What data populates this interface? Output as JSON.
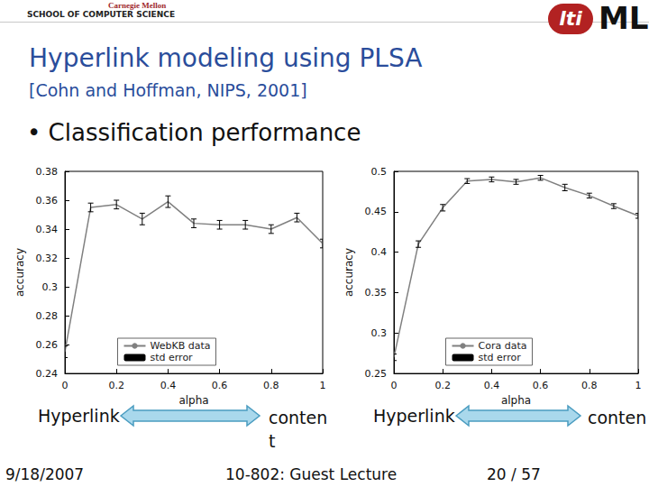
{
  "slide": {
    "header": {
      "university": "Carnegie Mellon",
      "school": "SCHOOL OF COMPUTER SCIENCE",
      "logo1": "lti",
      "logo2": "ML"
    },
    "title": "Hyperlink modeling using PLSA",
    "subtitle": "[Cohn and Hoffman, NIPS, 2001]",
    "bullet": "• Classification performance",
    "arrows": [
      {
        "left": "Hyperlink",
        "right": "conten\nt"
      },
      {
        "left": "Hyperlink",
        "right": "conten"
      }
    ],
    "footer": {
      "date": "9/18/2007",
      "course": "10-802: Guest Lecture",
      "page": "20 / 57"
    }
  },
  "chart_data": [
    {
      "type": "line",
      "x_label": "alpha",
      "y_label": "accuracy",
      "x": [
        0,
        0.1,
        0.2,
        0.3,
        0.4,
        0.5,
        0.6,
        0.7,
        0.8,
        0.9,
        1.0
      ],
      "xlim": [
        0,
        1
      ],
      "xticks": [
        0,
        0.2,
        0.4,
        0.6,
        0.8,
        1
      ],
      "ylim": [
        0.24,
        0.38
      ],
      "yticks": [
        0.24,
        0.26,
        0.28,
        0.3,
        0.32,
        0.34,
        0.36,
        0.38
      ],
      "grid": false,
      "legend": "lower center",
      "series": [
        {
          "name": "WebKB data",
          "color": "#808080",
          "line_style": "solid",
          "values": [
            0.255,
            0.355,
            0.357,
            0.347,
            0.359,
            0.344,
            0.343,
            0.343,
            0.34,
            0.348,
            0.33
          ],
          "errors": {
            "name": "std error",
            "color": "#000000",
            "values": [
              0.004,
              0.003,
              0.003,
              0.004,
              0.004,
              0.003,
              0.003,
              0.003,
              0.003,
              0.003,
              0.003
            ]
          }
        }
      ]
    },
    {
      "type": "line",
      "x_label": "alpha",
      "y_label": "accuracy",
      "x": [
        0,
        0.1,
        0.2,
        0.3,
        0.4,
        0.5,
        0.6,
        0.7,
        0.8,
        0.9,
        1.0
      ],
      "xlim": [
        0,
        1
      ],
      "xticks": [
        0,
        0.2,
        0.4,
        0.6,
        0.8,
        1
      ],
      "ylim": [
        0.25,
        0.5
      ],
      "yticks": [
        0.25,
        0.3,
        0.35,
        0.4,
        0.45,
        0.5
      ],
      "grid": false,
      "legend": "lower center",
      "series": [
        {
          "name": "Cora data",
          "color": "#808080",
          "line_style": "solid",
          "values": [
            0.27,
            0.41,
            0.455,
            0.488,
            0.49,
            0.487,
            0.492,
            0.48,
            0.47,
            0.457,
            0.445
          ],
          "errors": {
            "name": "std error",
            "color": "#000000",
            "values": [
              0.004,
              0.004,
              0.004,
              0.003,
              0.003,
              0.003,
              0.003,
              0.004,
              0.003,
              0.003,
              0.003
            ]
          }
        }
      ]
    }
  ]
}
